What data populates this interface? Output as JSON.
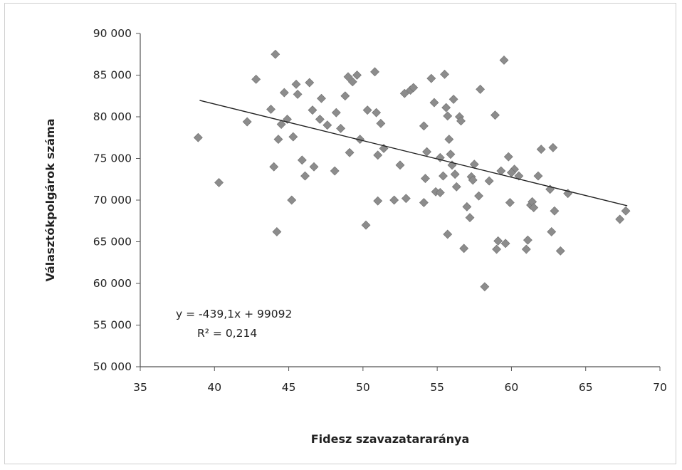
{
  "chart_data": {
    "type": "scatter",
    "xlabel": "Fidesz szavazatararánya",
    "ylabel": "Választókpolgárok száma",
    "xlim": [
      35,
      70
    ],
    "ylim": [
      50000,
      90000
    ],
    "xticks": [
      "35",
      "40",
      "45",
      "50",
      "55",
      "60",
      "65",
      "70"
    ],
    "yticks": [
      "50 000",
      "55 000",
      "60 000",
      "65 000",
      "70 000",
      "75 000",
      "80 000",
      "85 000",
      "90 000"
    ],
    "grid": false,
    "legend": "none",
    "marker_color": "#8c8c8c",
    "trendline": {
      "type": "linear",
      "slope": -439.1,
      "intercept": 99092,
      "x_range": [
        39,
        67.8
      ],
      "equation_label": "y = -439,1x + 99092",
      "r2_label": "R² = 0,214"
    },
    "points": [
      [
        38.9,
        77500
      ],
      [
        40.3,
        72100
      ],
      [
        42.8,
        84500
      ],
      [
        42.2,
        79400
      ],
      [
        43.8,
        80900
      ],
      [
        44.0,
        74000
      ],
      [
        44.1,
        87500
      ],
      [
        44.2,
        66200
      ],
      [
        44.5,
        79100
      ],
      [
        44.7,
        82900
      ],
      [
        44.3,
        77300
      ],
      [
        44.9,
        79700
      ],
      [
        45.2,
        70000
      ],
      [
        45.5,
        83900
      ],
      [
        45.6,
        82700
      ],
      [
        45.3,
        77600
      ],
      [
        45.9,
        74800
      ],
      [
        46.1,
        72900
      ],
      [
        46.4,
        84100
      ],
      [
        46.6,
        80800
      ],
      [
        46.7,
        74000
      ],
      [
        47.2,
        82200
      ],
      [
        47.6,
        79000
      ],
      [
        48.2,
        80500
      ],
      [
        48.1,
        73500
      ],
      [
        48.5,
        78600
      ],
      [
        48.8,
        82500
      ],
      [
        49.0,
        84800
      ],
      [
        49.3,
        84200
      ],
      [
        49.1,
        75700
      ],
      [
        49.6,
        85000
      ],
      [
        49.8,
        77300
      ],
      [
        50.3,
        80800
      ],
      [
        50.8,
        85400
      ],
      [
        50.2,
        67000
      ],
      [
        50.9,
        80500
      ],
      [
        51.0,
        75400
      ],
      [
        51.2,
        79200
      ],
      [
        51.4,
        76200
      ],
      [
        51.0,
        69900
      ],
      [
        52.1,
        70000
      ],
      [
        52.5,
        74200
      ],
      [
        52.8,
        82800
      ],
      [
        53.2,
        83200
      ],
      [
        53.4,
        83500
      ],
      [
        54.1,
        78900
      ],
      [
        54.3,
        75800
      ],
      [
        54.2,
        72600
      ],
      [
        54.1,
        69700
      ],
      [
        54.6,
        84600
      ],
      [
        54.8,
        81700
      ],
      [
        54.9,
        71000
      ],
      [
        55.2,
        70900
      ],
      [
        55.4,
        72900
      ],
      [
        55.5,
        85100
      ],
      [
        55.6,
        81100
      ],
      [
        55.7,
        80100
      ],
      [
        55.8,
        77300
      ],
      [
        55.9,
        75500
      ],
      [
        55.7,
        65900
      ],
      [
        56.0,
        74200
      ],
      [
        56.2,
        73100
      ],
      [
        56.3,
        71600
      ],
      [
        56.5,
        80000
      ],
      [
        56.6,
        79500
      ],
      [
        56.1,
        82100
      ],
      [
        56.8,
        64200
      ],
      [
        57.0,
        69200
      ],
      [
        57.2,
        67900
      ],
      [
        57.5,
        74300
      ],
      [
        57.3,
        72800
      ],
      [
        57.8,
        70500
      ],
      [
        58.2,
        59600
      ],
      [
        57.9,
        83300
      ],
      [
        58.5,
        72300
      ],
      [
        58.9,
        80200
      ],
      [
        59.1,
        65100
      ],
      [
        59.0,
        64100
      ],
      [
        59.3,
        73500
      ],
      [
        59.5,
        86800
      ],
      [
        59.6,
        64800
      ],
      [
        59.8,
        75200
      ],
      [
        59.9,
        69700
      ],
      [
        60.2,
        73700
      ],
      [
        60.5,
        72900
      ],
      [
        61.0,
        64100
      ],
      [
        61.1,
        65200
      ],
      [
        61.3,
        69400
      ],
      [
        61.4,
        69800
      ],
      [
        61.5,
        69100
      ],
      [
        61.8,
        72900
      ],
      [
        62.0,
        76100
      ],
      [
        62.6,
        71300
      ],
      [
        62.7,
        66200
      ],
      [
        62.8,
        76300
      ],
      [
        62.9,
        68700
      ],
      [
        63.3,
        63900
      ],
      [
        63.8,
        70800
      ],
      [
        67.3,
        67700
      ],
      [
        67.7,
        68700
      ],
      [
        60.0,
        73300
      ],
      [
        55.2,
        75100
      ],
      [
        52.9,
        70200
      ],
      [
        57.4,
        72400
      ],
      [
        47.1,
        79700
      ]
    ]
  }
}
